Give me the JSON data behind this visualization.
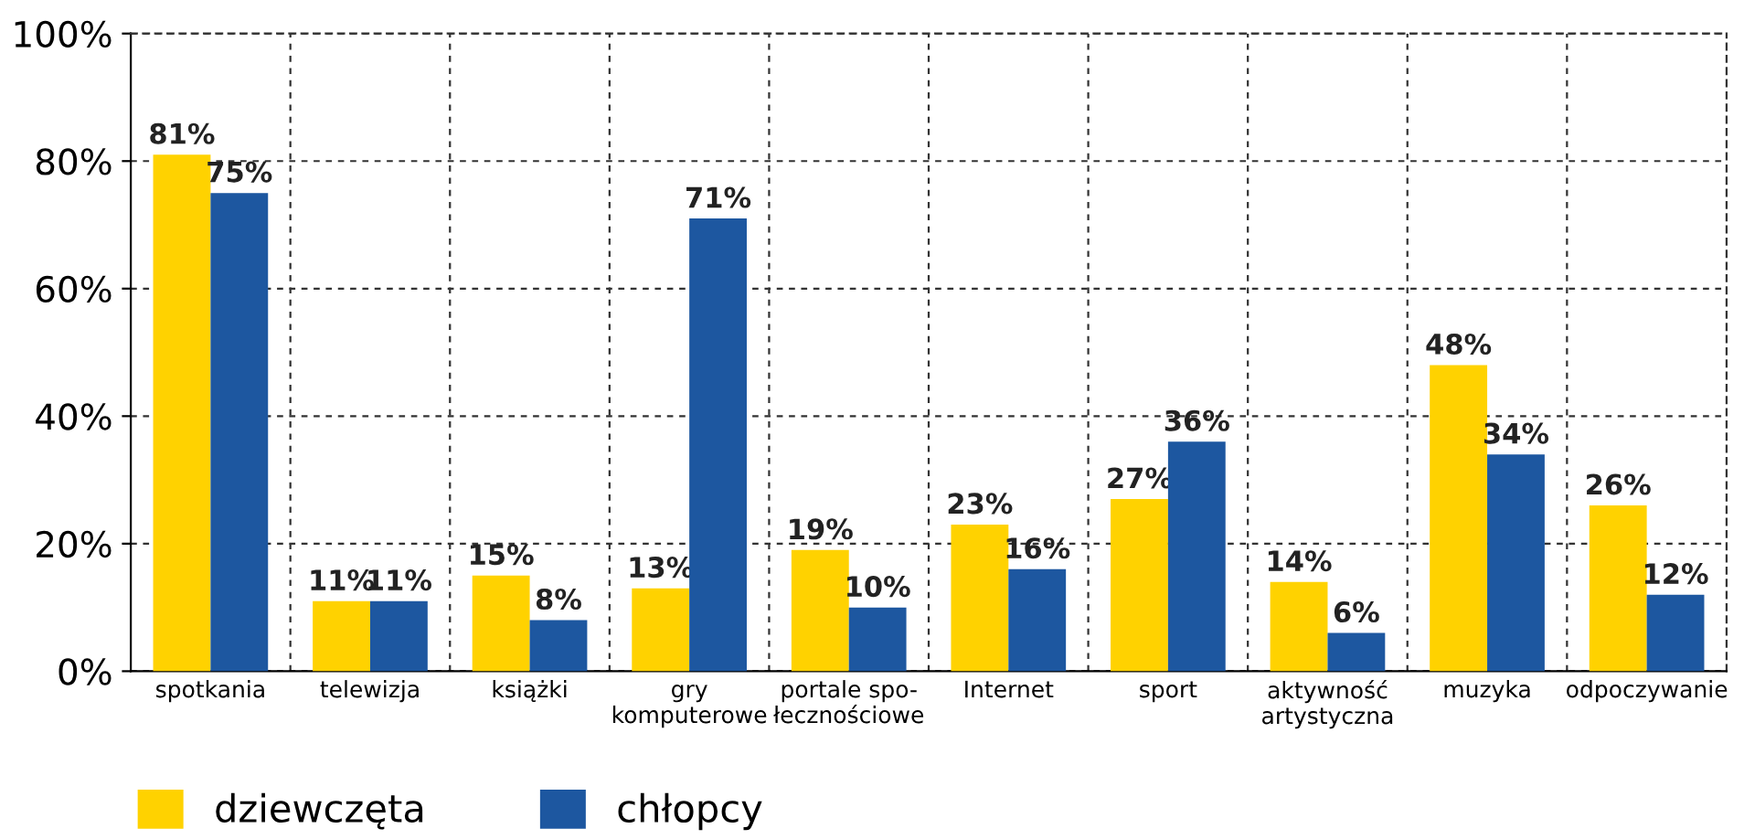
{
  "chart_data": {
    "type": "bar",
    "categories": [
      "spotkania",
      "telewizja",
      "książki",
      "gry\nkomputerowe",
      "portale spo-\nłecznościowe",
      "Internet",
      "sport",
      "aktywność\nartystyczna",
      "muzyka",
      "odpoczywanie"
    ],
    "series": [
      {
        "name": "dziewczęta",
        "color": "#ffd200",
        "values": [
          81,
          11,
          15,
          13,
          19,
          23,
          27,
          14,
          48,
          26
        ],
        "value_labels": [
          "81%",
          "11%",
          "15%",
          "13%",
          "19%",
          "23%",
          "27%",
          "14%",
          "48%",
          "26%"
        ]
      },
      {
        "name": "chłopcy",
        "color": "#1d57a0",
        "values": [
          75,
          11,
          8,
          71,
          10,
          16,
          36,
          6,
          34,
          12
        ],
        "value_labels": [
          "75%",
          "11%",
          "8%",
          "71%",
          "10%",
          "16%",
          "36%",
          "6%",
          "34%",
          "12%"
        ]
      }
    ],
    "ylim": [
      0,
      100
    ],
    "yticks": [
      {
        "value": 0,
        "label": "0%"
      },
      {
        "value": 20,
        "label": "20%"
      },
      {
        "value": 40,
        "label": "40%"
      },
      {
        "value": 60,
        "label": "60%"
      },
      {
        "value": 80,
        "label": "80%"
      },
      {
        "value": 100,
        "label": "100%"
      }
    ],
    "grid": true,
    "line_style": "dashed",
    "legend": "bottom left"
  }
}
